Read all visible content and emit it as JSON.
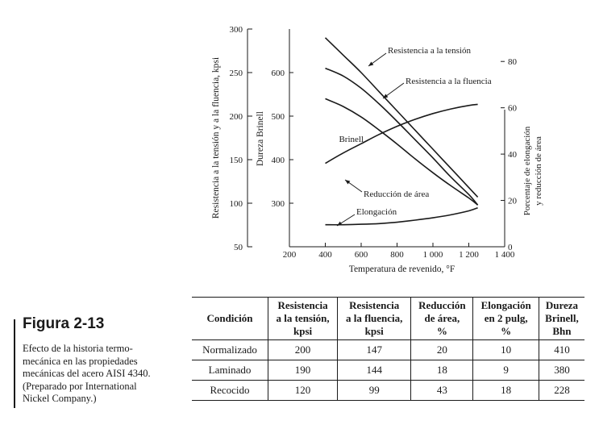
{
  "figure": {
    "title": "Figura 2-13",
    "caption_lines": [
      "Efecto de la historia termo-",
      "mecánica en las propiedades",
      "mecánicas del acero AISI 4340.",
      "(Preparado por International",
      "Nickel Company.)"
    ]
  },
  "chart_data": {
    "type": "line",
    "xlabel": "Temperatura de revenido, °F",
    "x_ticks": [
      "200",
      "400",
      "600",
      "800",
      "1 000",
      "1 200",
      "1 400"
    ],
    "x_tick_values": [
      200,
      400,
      600,
      800,
      1000,
      1200,
      1400
    ],
    "xlim": [
      200,
      1400
    ],
    "axes": {
      "strength": {
        "label": "Resistencia a la tensión y a la fluencia, kpsi",
        "ticks": [
          50,
          100,
          150,
          200,
          250,
          300
        ],
        "range": [
          50,
          300
        ]
      },
      "hardness": {
        "label": "Dureza Brinell",
        "ticks": [
          300,
          400,
          500,
          600
        ],
        "range": [
          200,
          700
        ]
      },
      "percent": {
        "label_lines": [
          "Porcentaje de elongación",
          "y reducción de área"
        ],
        "ticks": [
          0,
          20,
          40,
          60,
          80
        ],
        "range": [
          0,
          94
        ]
      }
    },
    "series": [
      {
        "name": "Resistencia a la tensión",
        "axis": "strength",
        "x": [
          400,
          500,
          600,
          700,
          800,
          900,
          1000,
          1100,
          1200,
          1250
        ],
        "y": [
          290,
          270,
          250,
          228,
          206,
          184,
          162,
          140,
          118,
          107
        ]
      },
      {
        "name": "Resistencia a la fluencia",
        "axis": "strength",
        "x": [
          400,
          500,
          600,
          700,
          800,
          900,
          1000,
          1100,
          1200,
          1250
        ],
        "y": [
          255,
          246,
          232,
          214,
          194,
          173,
          152,
          130,
          110,
          98
        ]
      },
      {
        "name": "Brinell",
        "axis": "hardness",
        "x": [
          400,
          500,
          600,
          700,
          800,
          900,
          1000,
          1100,
          1200,
          1250
        ],
        "y": [
          540,
          522,
          498,
          468,
          436,
          402,
          370,
          340,
          312,
          296
        ]
      },
      {
        "name": "Reducción de área",
        "axis": "percent",
        "x": [
          400,
          500,
          600,
          700,
          800,
          900,
          1000,
          1100,
          1200,
          1250
        ],
        "y": [
          36,
          40.5,
          44.5,
          48.5,
          52,
          55,
          57.5,
          59.5,
          61,
          61.5
        ]
      },
      {
        "name": "Elongación",
        "axis": "percent",
        "x": [
          400,
          500,
          600,
          700,
          800,
          900,
          1000,
          1100,
          1200,
          1250
        ],
        "y": [
          9.5,
          9.5,
          9.7,
          10,
          10.6,
          11.5,
          12.5,
          13.8,
          15.5,
          16.8
        ]
      }
    ],
    "labels": [
      {
        "series": "Resistencia a la tensión",
        "text": "Resistencia a la tensión"
      },
      {
        "series": "Resistencia a la fluencia",
        "text": "Resistencia a la fluencia"
      },
      {
        "series": "Brinell",
        "text": "Brinell"
      },
      {
        "series": "Reducción de área",
        "text": "Reducción de área"
      },
      {
        "series": "Elongación",
        "text": "Elongación"
      }
    ]
  },
  "table": {
    "headers": [
      [
        "Condición"
      ],
      [
        "Resistencia",
        "a la tensión,",
        "kpsi"
      ],
      [
        "Resistencia",
        "a la fluencia,",
        "kpsi"
      ],
      [
        "Reducción",
        "de área,",
        "%"
      ],
      [
        "Elongación",
        "en 2 pulg,",
        "%"
      ],
      [
        "Dureza",
        "Brinell,",
        "Bhn"
      ]
    ],
    "rows": [
      [
        "Normalizado",
        "200",
        "147",
        "20",
        "10",
        "410"
      ],
      [
        "Laminado",
        "190",
        "144",
        "18",
        "9",
        "380"
      ],
      [
        "Recocido",
        "120",
        "99",
        "43",
        "18",
        "228"
      ]
    ]
  }
}
